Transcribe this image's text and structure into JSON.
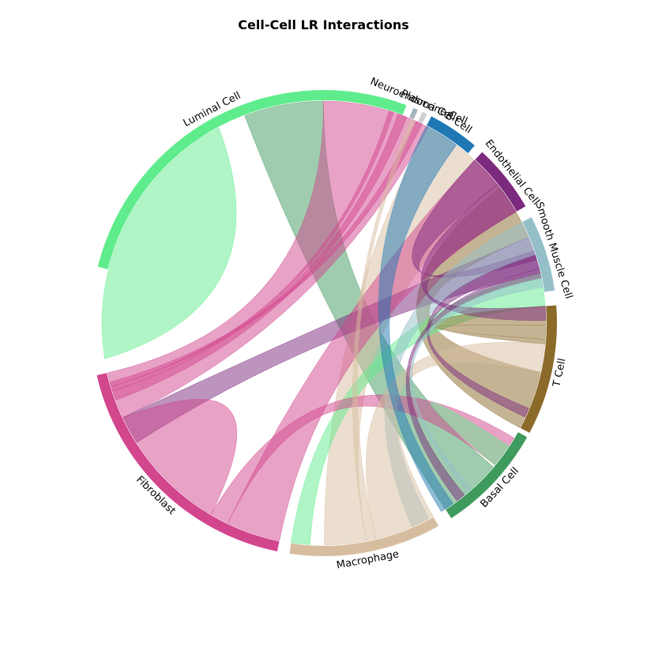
{
  "chart_data": {
    "type": "chord",
    "title": "Cell-Cell LR Interactions",
    "groups": [
      {
        "name": "Luminal Cell",
        "color": "#5fec8c",
        "start": 0,
        "end": 79
      },
      {
        "name": "Neuroendocrine Cell",
        "color": "#a6b4bd",
        "start": 80.5,
        "end": 81.5
      },
      {
        "name": "Plasma Cell",
        "color": "#cfcfcf",
        "start": 82.5,
        "end": 83.5
      },
      {
        "name": "B Cell",
        "color": "#1f77b4",
        "start": 84.5,
        "end": 95
      },
      {
        "name": "Endothelial Cell",
        "color": "#7b2a7d",
        "start": 97,
        "end": 111
      },
      {
        "name": "Smooth Muscle Cell",
        "color": "#94bfc9",
        "start": 113.5,
        "end": 129
      },
      {
        "name": "T Cell",
        "color": "#8b6a2a",
        "start": 132,
        "end": 158.5
      },
      {
        "name": "Basal Cell",
        "color": "#3f9a5d",
        "start": 159.5,
        "end": 182
      },
      {
        "name": "Macrophage",
        "color": "#d7bd9f",
        "start": 185,
        "end": 216
      },
      {
        "name": "Fibroblast",
        "color": "#d2468e",
        "start": 218.5,
        "end": 272
      }
    ],
    "chords": [
      {
        "color": "#5fec8c",
        "a": [
          275,
          333
        ],
        "b": [
          275,
          333
        ],
        "self": true
      },
      {
        "color": "#3f9a5d",
        "a": [
          339,
          62
        ],
        "b": [
          168.5,
          182
        ]
      },
      {
        "color": "#d2468e",
        "a": [
          62,
          85
        ],
        "b": [
          262,
          272
        ]
      },
      {
        "color": "#d7bd9f",
        "a": [
          85,
          105
        ],
        "b": [
          200,
          209
        ]
      },
      {
        "color": "#8b6a2a",
        "a": [
          105,
          117
        ],
        "b": [
          146,
          158.5
        ]
      },
      {
        "color": "#7b2a7d",
        "a": [
          117,
          125
        ],
        "b": [
          256,
          262
        ]
      },
      {
        "color": "#5fec8c",
        "a": [
          125,
          132
        ],
        "b": [
          212,
          216
        ]
      },
      {
        "color": "#d2468e",
        "a": [
          234,
          262
        ],
        "b": [
          234,
          262
        ],
        "self": true
      },
      {
        "color": "#d2468e",
        "a": [
          218.5,
          230
        ],
        "b": [
          97,
          111
        ]
      },
      {
        "color": "#d2468e",
        "a": [
          230,
          234
        ],
        "b": [
          161,
          168
        ]
      },
      {
        "color": "#7b2a7d",
        "a": [
          97,
          104
        ],
        "b": [
          120,
          122
        ]
      },
      {
        "color": "#8b6a2a",
        "a": [
          132,
          139
        ],
        "b": [
          136,
          140
        ]
      },
      {
        "color": "#94bfc9",
        "a": [
          113.5,
          121
        ],
        "b": [
          186,
          190
        ]
      },
      {
        "color": "#d7bd9f",
        "a": [
          185,
          198
        ],
        "b": [
          140,
          146
        ]
      },
      {
        "color": "#5fec8c",
        "a": [
          163,
          168
        ],
        "b": [
          163,
          168
        ],
        "self": true
      },
      {
        "color": "#1f77b4",
        "a": [
          84.5,
          92
        ],
        "b": [
          180,
          183
        ]
      },
      {
        "color": "#7b2a7d",
        "a": [
          104,
          111
        ],
        "b": [
          132,
          135
        ]
      },
      {
        "color": "#d2468e",
        "a": [
          266,
          268
        ],
        "b": [
          78,
          80
        ]
      },
      {
        "color": "#d2468e",
        "a": [
          268,
          269
        ],
        "b": [
          76,
          77
        ]
      },
      {
        "color": "#d2468e",
        "a": [
          269,
          270
        ],
        "b": [
          82,
          83.5
        ]
      },
      {
        "color": "#7b2a7d",
        "a": [
          121,
          124
        ],
        "b": [
          154,
          156
        ]
      },
      {
        "color": "#7b2a7d",
        "a": [
          124,
          126
        ],
        "b": [
          177,
          179
        ]
      },
      {
        "color": "#d7bd9f",
        "a": [
          198,
          200
        ],
        "b": [
          81,
          82
        ]
      },
      {
        "color": "#94bfc9",
        "a": [
          126,
          128
        ],
        "b": [
          175,
          176
        ]
      }
    ]
  }
}
